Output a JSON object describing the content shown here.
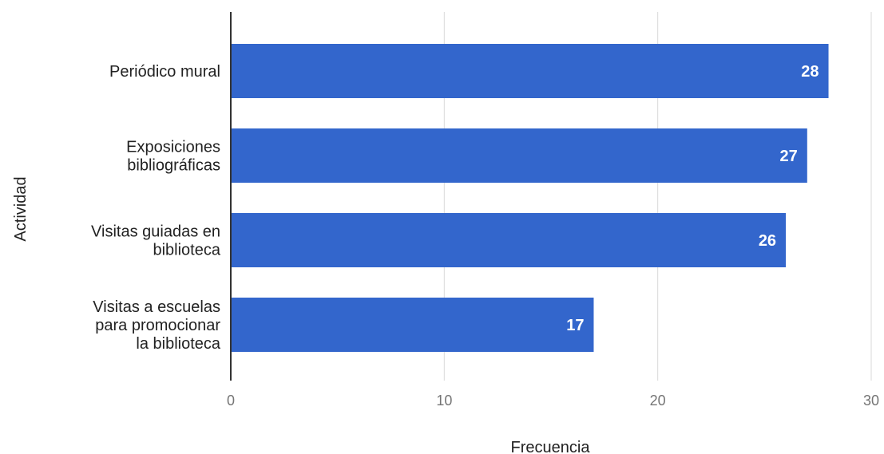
{
  "chart_data": {
    "type": "bar",
    "orientation": "horizontal",
    "categories": [
      [
        "Periódico mural"
      ],
      [
        "Exposiciones",
        "bibliográficas"
      ],
      [
        "Visitas guiadas en",
        "biblioteca"
      ],
      [
        "Visitas a escuelas",
        "para promocionar",
        "la biblioteca"
      ]
    ],
    "values": [
      28,
      27,
      26,
      17
    ],
    "data_labels": [
      "28",
      "27",
      "26",
      "17"
    ],
    "xlabel": "Frecuencia",
    "ylabel": "Actividad",
    "xlim": [
      0,
      30
    ],
    "xticks": [
      0,
      10,
      20,
      30
    ],
    "xtick_labels": [
      "0",
      "10",
      "20",
      "30"
    ],
    "grid": true,
    "bar_color": "#3366cc"
  }
}
